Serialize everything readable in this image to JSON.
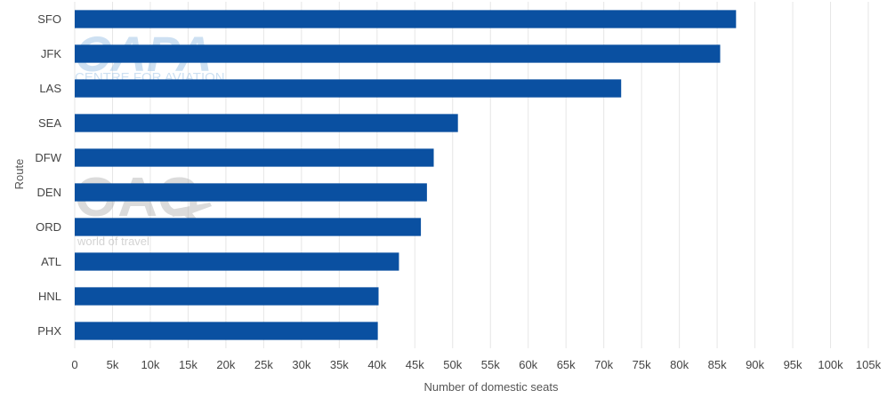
{
  "chart_data": {
    "type": "bar",
    "orientation": "horizontal",
    "categories": [
      "SFO",
      "JFK",
      "LAS",
      "SEA",
      "DFW",
      "DEN",
      "ORD",
      "ATL",
      "HNL",
      "PHX"
    ],
    "values": [
      87500,
      85400,
      72300,
      50700,
      47500,
      46600,
      45800,
      42900,
      40200,
      40100
    ],
    "xlabel": "Number of domestic seats",
    "ylabel": "Route",
    "xlim": [
      0,
      105000
    ],
    "x_ticks": [
      0,
      5000,
      10000,
      15000,
      20000,
      25000,
      30000,
      35000,
      40000,
      45000,
      50000,
      55000,
      60000,
      65000,
      70000,
      75000,
      80000,
      85000,
      90000,
      95000,
      100000,
      105000
    ],
    "x_tick_labels": [
      "0",
      "5k",
      "10k",
      "15k",
      "20k",
      "25k",
      "30k",
      "35k",
      "40k",
      "45k",
      "50k",
      "55k",
      "60k",
      "65k",
      "70k",
      "75k",
      "80k",
      "85k",
      "90k",
      "95k",
      "100k",
      "105k"
    ],
    "grid": "vertical",
    "legend": "none",
    "bar_color": "#0a50a1",
    "grid_color": "#e6e6e6"
  },
  "watermarks": {
    "capa_logo": "CAPA",
    "capa_text": "CENTRE FOR AVIATION",
    "oag_logo": "OAG",
    "oag_text": "world of travel"
  }
}
